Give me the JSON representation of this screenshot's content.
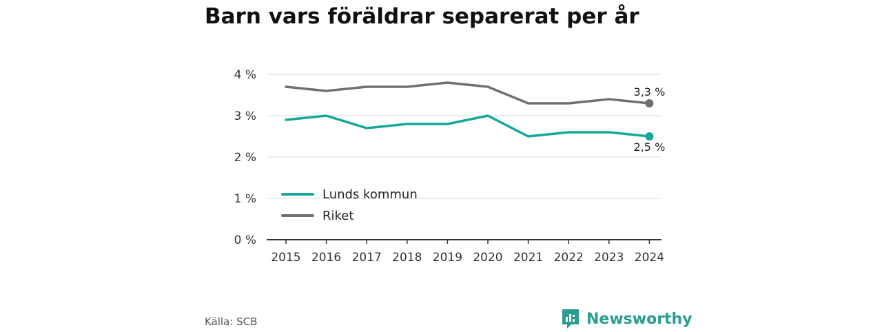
{
  "title": "Barn vars föräldrar separerat per år",
  "source": "Källa: SCB",
  "brand": {
    "name": "Newsworthy",
    "icon": "newsworthy-logo-icon",
    "color": "#2a9d8f"
  },
  "chart_data": {
    "type": "line",
    "title": "Barn vars föräldrar separerat per år",
    "x": [
      "2015",
      "2016",
      "2017",
      "2018",
      "2019",
      "2020",
      "2021",
      "2022",
      "2023",
      "2024"
    ],
    "ylim": [
      0,
      4
    ],
    "yticks": [
      0,
      1,
      2,
      3,
      4
    ],
    "ytick_labels": [
      "0 %",
      "1 %",
      "2 %",
      "3 %",
      "4 %"
    ],
    "grid": true,
    "legend_position": "bottom-left",
    "series": [
      {
        "name": "Lunds kommun",
        "color": "#14a89a",
        "values": [
          2.9,
          3.0,
          2.7,
          2.8,
          2.8,
          3.0,
          2.5,
          2.6,
          2.6,
          2.5
        ],
        "end_label": "2,5 %"
      },
      {
        "name": "Riket",
        "color": "#707070",
        "values": [
          3.7,
          3.6,
          3.7,
          3.7,
          3.8,
          3.7,
          3.3,
          3.3,
          3.4,
          3.3
        ],
        "end_label": "3,3 %"
      }
    ]
  }
}
